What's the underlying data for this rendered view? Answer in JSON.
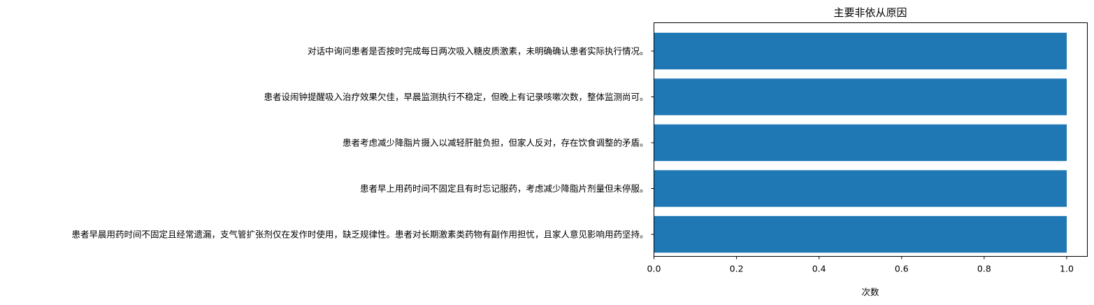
{
  "chart_data": {
    "type": "bar",
    "orientation": "horizontal",
    "title": "主要非依从原因",
    "xlabel": "次数",
    "ylabel": "",
    "xlim": [
      0,
      1.05
    ],
    "xticks": [
      0.0,
      0.2,
      0.4,
      0.6,
      0.8,
      1.0
    ],
    "xtick_labels": [
      "0.0",
      "0.2",
      "0.4",
      "0.6",
      "0.8",
      "1.0"
    ],
    "grid": false,
    "bar_color": "#1f77b4",
    "categories": [
      "对话中询问患者是否按时完成每日两次吸入糖皮质激素，未明确确认患者实际执行情况。",
      "患者设闹钟提醒吸入治疗效果欠佳，早晨监测执行不稳定，但晚上有记录咳嗽次数，整体监测尚可。",
      "患者考虑减少降脂片摄入以减轻肝脏负担，但家人反对，存在饮食调整的矛盾。",
      "患者早上用药时间不固定且有时忘记服药，考虑减少降脂片剂量但未停服。",
      "患者早晨用药时间不固定且经常遗漏，支气管扩张剂仅在发作时使用，缺乏规律性。患者对长期激素类药物有副作用担忧，且家人意见影响用药坚持。"
    ],
    "values": [
      1,
      1,
      1,
      1,
      1
    ]
  }
}
